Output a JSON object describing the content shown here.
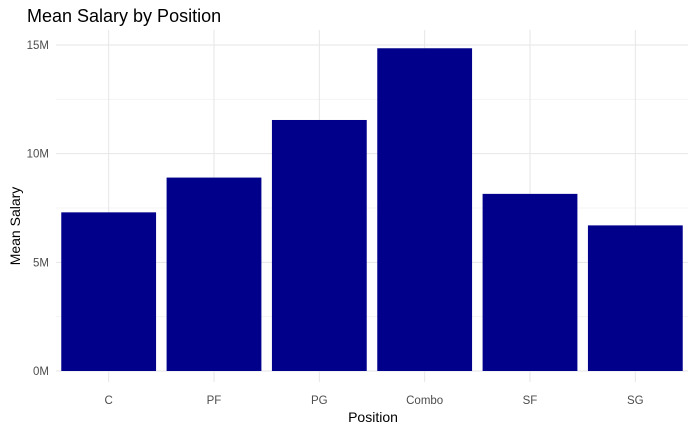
{
  "chart_data": {
    "type": "bar",
    "title": "Mean Salary by Position",
    "xlabel": "Position",
    "ylabel": "Mean Salary",
    "categories": [
      "C",
      "PF",
      "PG",
      "Combo",
      "SF",
      "SG"
    ],
    "values": [
      7300000,
      8900000,
      11550000,
      14850000,
      8150000,
      6700000
    ],
    "ylim": [
      0,
      15500000
    ],
    "y_ticks": [
      0,
      5000000,
      10000000,
      15000000
    ],
    "y_tick_labels": [
      "0M",
      "5M",
      "10M",
      "15M"
    ],
    "grid": true,
    "bar_color": "#00008B"
  }
}
